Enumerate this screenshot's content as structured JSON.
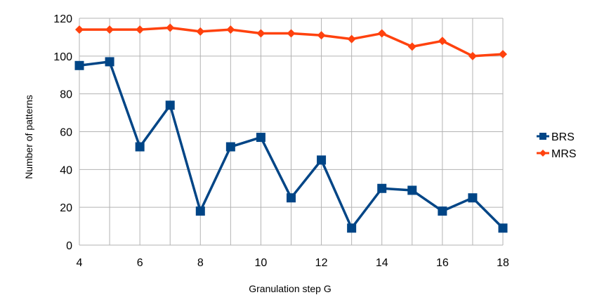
{
  "chart_data": {
    "type": "line",
    "title": "",
    "xlabel": "Granulation step G",
    "ylabel": "Number of patterns",
    "xlim": [
      4,
      18
    ],
    "ylim": [
      0,
      120
    ],
    "x_ticks": [
      4,
      6,
      8,
      10,
      12,
      14,
      16,
      18
    ],
    "y_ticks": [
      0,
      20,
      40,
      60,
      80,
      100,
      120
    ],
    "grid": "vertical at every x, horizontal at y ticks",
    "legend_position": "right",
    "x": [
      4,
      5,
      6,
      7,
      8,
      9,
      10,
      11,
      12,
      13,
      14,
      15,
      16,
      17,
      18
    ],
    "series": [
      {
        "name": "BRS",
        "color": "#004586",
        "marker": "square",
        "values": [
          95,
          97,
          52,
          74,
          18,
          52,
          57,
          25,
          45,
          9,
          30,
          29,
          18,
          25,
          9
        ]
      },
      {
        "name": "MRS",
        "color": "#ff420e",
        "marker": "diamond",
        "values": [
          114,
          114,
          114,
          115,
          113,
          114,
          112,
          112,
          111,
          109,
          112,
          105,
          108,
          100,
          101
        ]
      }
    ]
  }
}
